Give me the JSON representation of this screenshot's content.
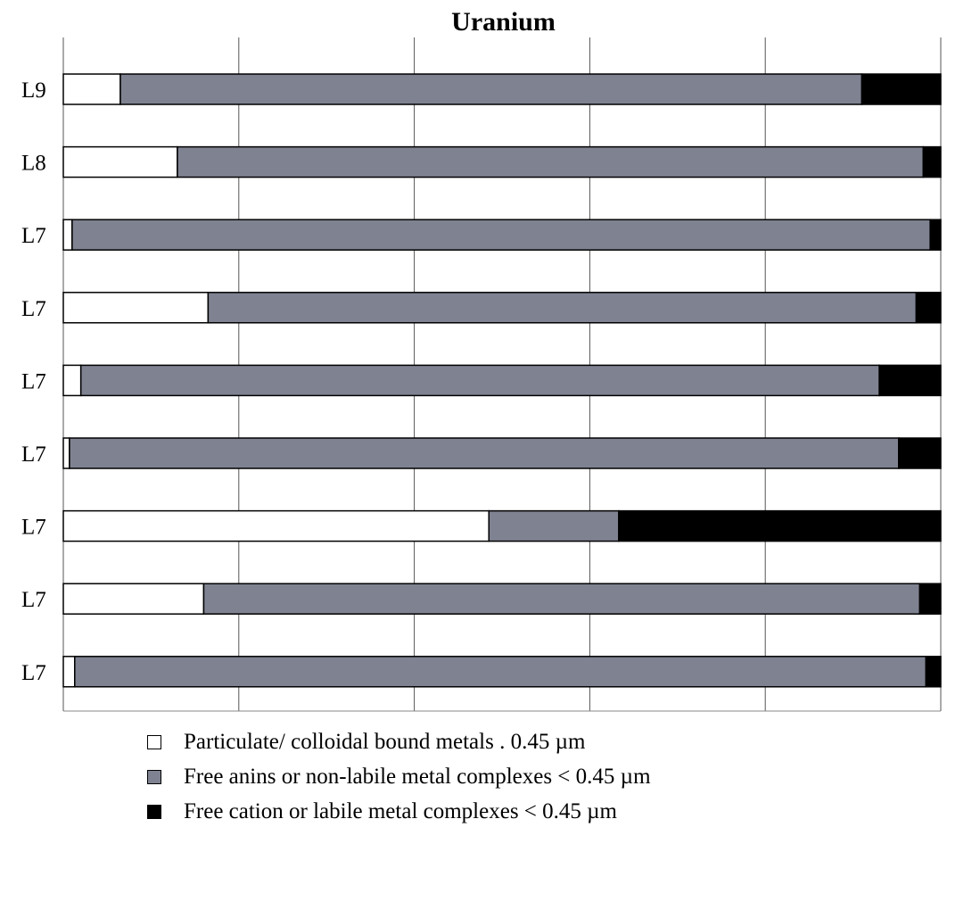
{
  "chart_data": {
    "type": "bar",
    "orientation": "horizontal",
    "stacked": "percent",
    "title": "Uranium",
    "categories": [
      "L9",
      "L8",
      "L7",
      "L7",
      "L7",
      "L7",
      "L7",
      "L7",
      "L7"
    ],
    "series": [
      {
        "name": "Particulate/ colloidal bound metals . 0.45 µm",
        "color": "#ffffff",
        "values": [
          6.5,
          13,
          1,
          16.5,
          2,
          0.7,
          48.5,
          16,
          1.3
        ]
      },
      {
        "name": "Free anins or non-labile metal complexes < 0.45 µm",
        "color": "#7f8291",
        "values": [
          84.5,
          85,
          97.8,
          80.7,
          91,
          94.5,
          14.8,
          81.6,
          97
        ]
      },
      {
        "name": "Free cation or labile metal complexes < 0.45 µm",
        "color": "#000000",
        "values": [
          9,
          2,
          1.2,
          2.8,
          7,
          4.8,
          36.7,
          2.4,
          1.7
        ]
      }
    ],
    "xlim": [
      0,
      100
    ],
    "x_ticks": [
      "0%",
      "20%",
      "40%",
      "60%",
      "80%",
      "100%"
    ],
    "xlabel": "",
    "ylabel": "",
    "grid": "vertical",
    "legend_position": "bottom"
  }
}
